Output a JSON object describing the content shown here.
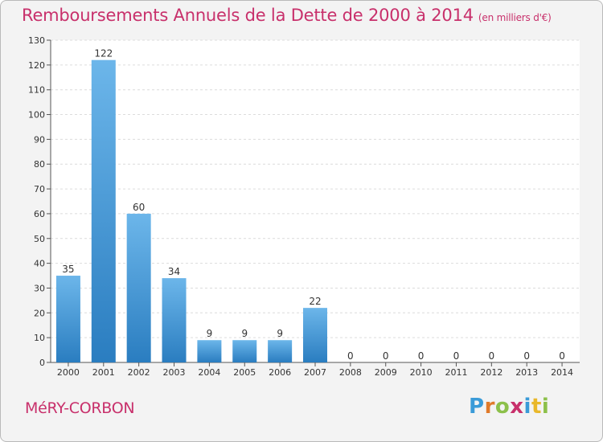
{
  "header": {
    "title": "Remboursements Annuels de la Dette de 2000 à 2014",
    "unit": "(en milliers d'€)"
  },
  "footer": {
    "commune": "MéRY-CORBON",
    "logo": {
      "text": "Proxiti",
      "letters": [
        {
          "ch": "P",
          "color": "#3a9bd8"
        },
        {
          "ch": "r",
          "color": "#e07a2a"
        },
        {
          "ch": "o",
          "color": "#8cc04a"
        },
        {
          "ch": "x",
          "color": "#c8306b"
        },
        {
          "ch": "i",
          "color": "#3a9bd8"
        },
        {
          "ch": "t",
          "color": "#e9b82b"
        },
        {
          "ch": "i",
          "color": "#8cc04a"
        }
      ]
    }
  },
  "colors": {
    "accent": "#c8306b",
    "bar_light": "#6cb6ea",
    "bar_dark": "#2a7dc0",
    "grid": "#dcdcdc"
  },
  "chart_data": {
    "type": "bar",
    "title": "Remboursements Annuels de la Dette de 2000 à 2014",
    "xlabel": "",
    "ylabel": "",
    "ylim": [
      0,
      130
    ],
    "yticks": [
      0,
      10,
      20,
      30,
      40,
      50,
      60,
      70,
      80,
      90,
      100,
      110,
      120,
      130
    ],
    "grid": "dashed horizontal",
    "categories": [
      "2000",
      "2001",
      "2002",
      "2003",
      "2004",
      "2005",
      "2006",
      "2007",
      "2008",
      "2009",
      "2010",
      "2011",
      "2012",
      "2013",
      "2014"
    ],
    "values": [
      35,
      122,
      60,
      34,
      9,
      9,
      9,
      22,
      0,
      0,
      0,
      0,
      0,
      0,
      0
    ]
  }
}
